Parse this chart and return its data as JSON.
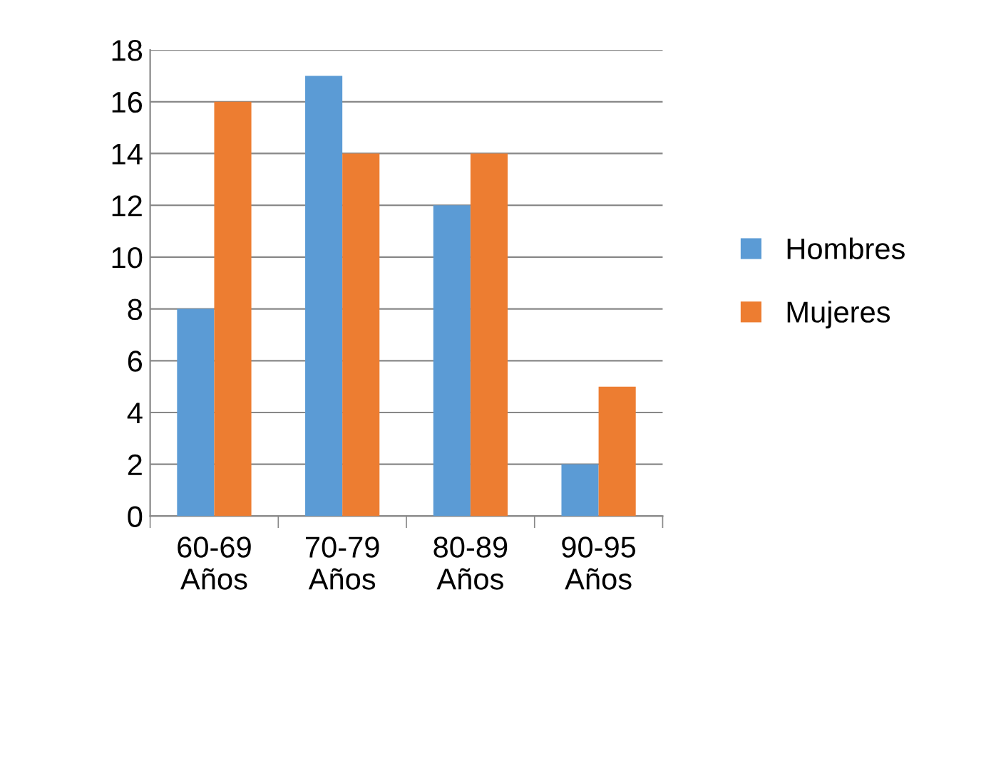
{
  "chart_data": {
    "type": "bar",
    "categories": [
      "60-69\nAños",
      "70-79\nAños",
      "80-89\nAños",
      "90-95\nAños"
    ],
    "series": [
      {
        "name": "Hombres",
        "color": "#5b9bd5",
        "values": [
          8,
          17,
          12,
          2
        ]
      },
      {
        "name": "Mujeres",
        "color": "#ed7d31",
        "values": [
          16,
          14,
          14,
          5
        ]
      }
    ],
    "ylim": [
      0,
      18
    ],
    "yticks": [
      0,
      2,
      4,
      6,
      8,
      10,
      12,
      14,
      16,
      18
    ],
    "grid": "y",
    "legend": "right"
  }
}
